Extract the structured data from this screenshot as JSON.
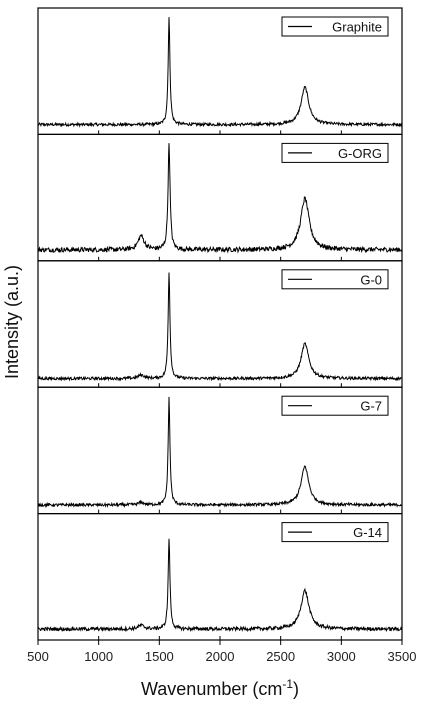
{
  "chart_data": {
    "type": "line",
    "layout": "stacked-panels",
    "title": "",
    "xlabel": "Wavenumber",
    "xlabel_unit_base": "cm",
    "xlabel_unit_exponent": "-1",
    "ylabel": "Intensity (a.u.)",
    "xlim": [
      500,
      3500
    ],
    "x_ticks": [
      500,
      1000,
      1500,
      2000,
      2500,
      3000,
      3500
    ],
    "legend_position": "top-right",
    "grid": false,
    "line_color": "#000000",
    "panels": [
      {
        "name": "Graphite",
        "baseline": 0.05,
        "noise": 0.012,
        "peaks": [
          {
            "center": 1350,
            "height": 0.0,
            "width": 40
          },
          {
            "center": 1580,
            "height": 0.92,
            "width": 9
          },
          {
            "center": 2700,
            "height": 0.32,
            "width": 38
          }
        ]
      },
      {
        "name": "G-ORG",
        "baseline": 0.06,
        "noise": 0.02,
        "peaks": [
          {
            "center": 1350,
            "height": 0.12,
            "width": 30
          },
          {
            "center": 1580,
            "height": 0.92,
            "width": 10
          },
          {
            "center": 2700,
            "height": 0.44,
            "width": 42
          }
        ]
      },
      {
        "name": "G-0",
        "baseline": 0.04,
        "noise": 0.012,
        "peaks": [
          {
            "center": 1350,
            "height": 0.03,
            "width": 30
          },
          {
            "center": 1580,
            "height": 0.92,
            "width": 9
          },
          {
            "center": 2700,
            "height": 0.3,
            "width": 38
          }
        ]
      },
      {
        "name": "G-7",
        "baseline": 0.04,
        "noise": 0.012,
        "peaks": [
          {
            "center": 1350,
            "height": 0.02,
            "width": 30
          },
          {
            "center": 1580,
            "height": 0.92,
            "width": 9
          },
          {
            "center": 2700,
            "height": 0.33,
            "width": 38
          }
        ]
      },
      {
        "name": "G-14",
        "baseline": 0.06,
        "noise": 0.015,
        "peaks": [
          {
            "center": 1350,
            "height": 0.03,
            "width": 30
          },
          {
            "center": 1580,
            "height": 0.78,
            "width": 9
          },
          {
            "center": 2700,
            "height": 0.33,
            "width": 40
          }
        ]
      }
    ]
  }
}
